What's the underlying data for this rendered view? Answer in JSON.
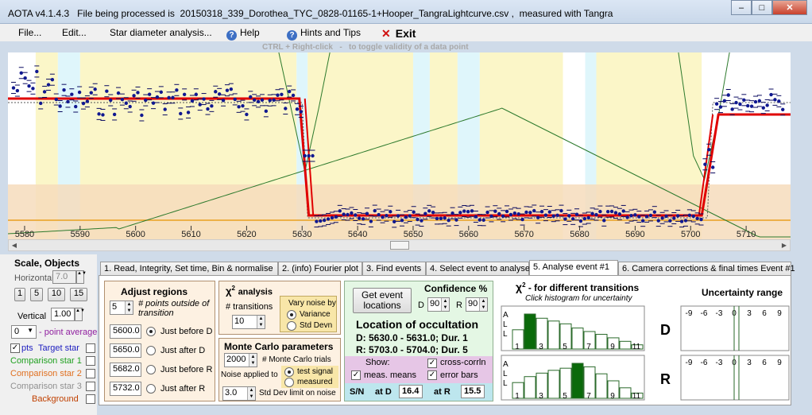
{
  "window": {
    "title": "AOTA v4.1.4.3   File being processed is  20150318_339_Dorothea_TYC_0828-01165-1+Hooper_TangraLightcurve.csv ,  measured with Tangra",
    "min": "–",
    "max": "□",
    "close": "✕"
  },
  "menu": {
    "file": "File...",
    "edit": "Edit...",
    "star_diameter": "Star diameter analysis...",
    "help": "Help",
    "hints": "Hints and Tips",
    "exit": "Exit",
    "exit_icon": "✕"
  },
  "hint": "CTRL + Right-click   -   to toggle validity of a data point",
  "chart_data": {
    "type": "line",
    "x_ticks": [
      "5580",
      "5590",
      "5600",
      "5610",
      "5620",
      "5630",
      "5640",
      "5650",
      "5660",
      "5670",
      "5680",
      "5690",
      "5700",
      "5710"
    ],
    "xlim": [
      5577,
      5718
    ],
    "colors": {
      "fit": "#e00000",
      "data": "#101890",
      "chi": "#2d7a2d",
      "baseline": "#e8a020",
      "bg_yellow": "#fbf6c8",
      "bg_cyan": "#dff6fb",
      "bg_peach": "#f6dcbc"
    },
    "events": {
      "D": [
        5630.0,
        5631.0
      ],
      "R": [
        5703.0,
        5704.0
      ]
    }
  },
  "left": {
    "scale_title": "Scale,  Objects",
    "horizontal_label": "Horizontal",
    "horizontal_value": "7.0",
    "steps": [
      "1",
      "5",
      "10",
      "15"
    ],
    "vertical_label": "Vertical",
    "vertical_value": "1.00",
    "avg_value": "0",
    "avg_label": "- point average",
    "pts_label": "pts",
    "target": "Target star",
    "comp1": "Comparison star 1",
    "comp2": "Comparison star 2",
    "comp3": "Comparison star 3",
    "background": "Background",
    "colors": {
      "target": "#2020c0",
      "comp1": "#20a020",
      "comp2": "#e07020",
      "comp3": "#909090",
      "background": "#c04000"
    }
  },
  "tabs": [
    "1.  Read, Integrity, Set time, Bin & normalise",
    "2. (info)  Fourier plot",
    "3. Find events",
    "4. Select event to analyse",
    "5. Analyse event #1",
    "6. Camera corrections & final times Event #1"
  ],
  "adjust": {
    "title": "Adjust regions",
    "points_value": "5",
    "points_label": "# points outside of transition",
    "rows": [
      {
        "value": "5600.0",
        "label": "Just before D"
      },
      {
        "value": "5650.0",
        "label": "Just after D"
      },
      {
        "value": "5682.0",
        "label": "Just before R"
      },
      {
        "value": "5732.0",
        "label": "Just after R"
      }
    ]
  },
  "chi": {
    "title": "χ",
    "sup": "2",
    "title_rest": "analysis",
    "transitions_label": "# transitions",
    "transitions_value": "10",
    "vary_title": "Vary noise by",
    "opt1": "Variance",
    "opt2": "Std Devn"
  },
  "mc": {
    "title": "Monte Carlo parameters",
    "trials_value": "2000",
    "trials_label": "# Monte Carlo trials",
    "noise_label": "Noise applied to",
    "opt1": "test signal",
    "opt2": "measured",
    "sd_value": "3.0",
    "sd_label": "Std Dev limit on noise"
  },
  "loc": {
    "get_btn": "Get event locations",
    "conf_title": "Confidence %",
    "d_label": "D",
    "d_value": "90",
    "r_label": "R",
    "r_value": "90",
    "title": "Location of occultation",
    "d_line": "D: 5630.0 - 5631.0; Dur. 1",
    "r_line": "R: 5703.0 - 5704.0; Dur. 5",
    "show": "Show:",
    "cross": "cross-corrln",
    "means": "meas. means",
    "err": "error bars",
    "sn": "S/N",
    "at_d": "at D",
    "sn_d": "16.4",
    "at_r": "at R",
    "sn_r": "15.5"
  },
  "hist": {
    "title_chi": "χ",
    "title_sup": "2",
    "title_rest": " -  for different transitions",
    "sub": "Click histogram for uncertainty",
    "all": [
      "A",
      "L",
      "L"
    ],
    "labels": [
      "1",
      "3",
      "5",
      "7",
      "9",
      "11"
    ],
    "d_bars": [
      0.55,
      1.0,
      0.88,
      0.8,
      0.72,
      0.6,
      0.5,
      0.42,
      0.32,
      0.22,
      0.12
    ],
    "r_bars": [
      0.45,
      0.62,
      0.72,
      0.8,
      0.86,
      1.0,
      0.9,
      0.7,
      0.5,
      0.3,
      0.15
    ],
    "d_sel": 1,
    "r_sel": 5,
    "D": "D",
    "R": "R"
  },
  "unc": {
    "title": "Uncertainty range",
    "ticks": [
      "-9",
      "-6",
      "-3",
      "0",
      "3",
      "6",
      "9"
    ]
  }
}
